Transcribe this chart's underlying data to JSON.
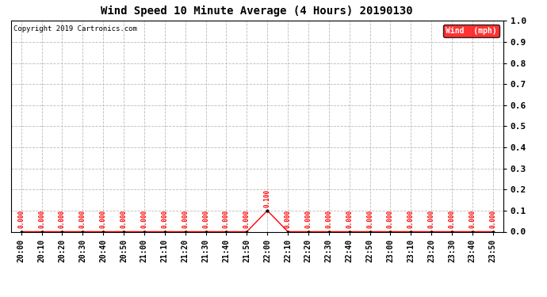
{
  "title": "Wind Speed 10 Minute Average (4 Hours) 20190130",
  "copyright": "Copyright 2019 Cartronics.com",
  "legend_label": "Wind  (mph)",
  "legend_bg": "#ff0000",
  "legend_fg": "#ffffff",
  "line_color": "#ff0000",
  "marker_color": "#000000",
  "annotation_color": "#ff0000",
  "background_color": "#ffffff",
  "grid_color": "#bbbbbb",
  "ylim": [
    0.0,
    1.0
  ],
  "yticks": [
    0.0,
    0.1,
    0.2,
    0.3,
    0.4,
    0.5,
    0.6,
    0.7,
    0.8,
    0.9,
    1.0
  ],
  "x_labels": [
    "20:00",
    "20:10",
    "20:20",
    "20:30",
    "20:40",
    "20:50",
    "21:00",
    "21:10",
    "21:20",
    "21:30",
    "21:40",
    "21:50",
    "22:00",
    "22:10",
    "22:20",
    "22:30",
    "22:40",
    "22:50",
    "23:00",
    "23:10",
    "23:20",
    "23:30",
    "23:40",
    "23:50"
  ],
  "values": [
    0.0,
    0.0,
    0.0,
    0.0,
    0.0,
    0.0,
    0.0,
    0.0,
    0.0,
    0.0,
    0.0,
    0.0,
    0.1,
    0.0,
    0.0,
    0.0,
    0.0,
    0.0,
    0.0,
    0.0,
    0.0,
    0.0,
    0.0,
    0.0
  ],
  "figsize": [
    6.9,
    3.75
  ],
  "dpi": 100
}
